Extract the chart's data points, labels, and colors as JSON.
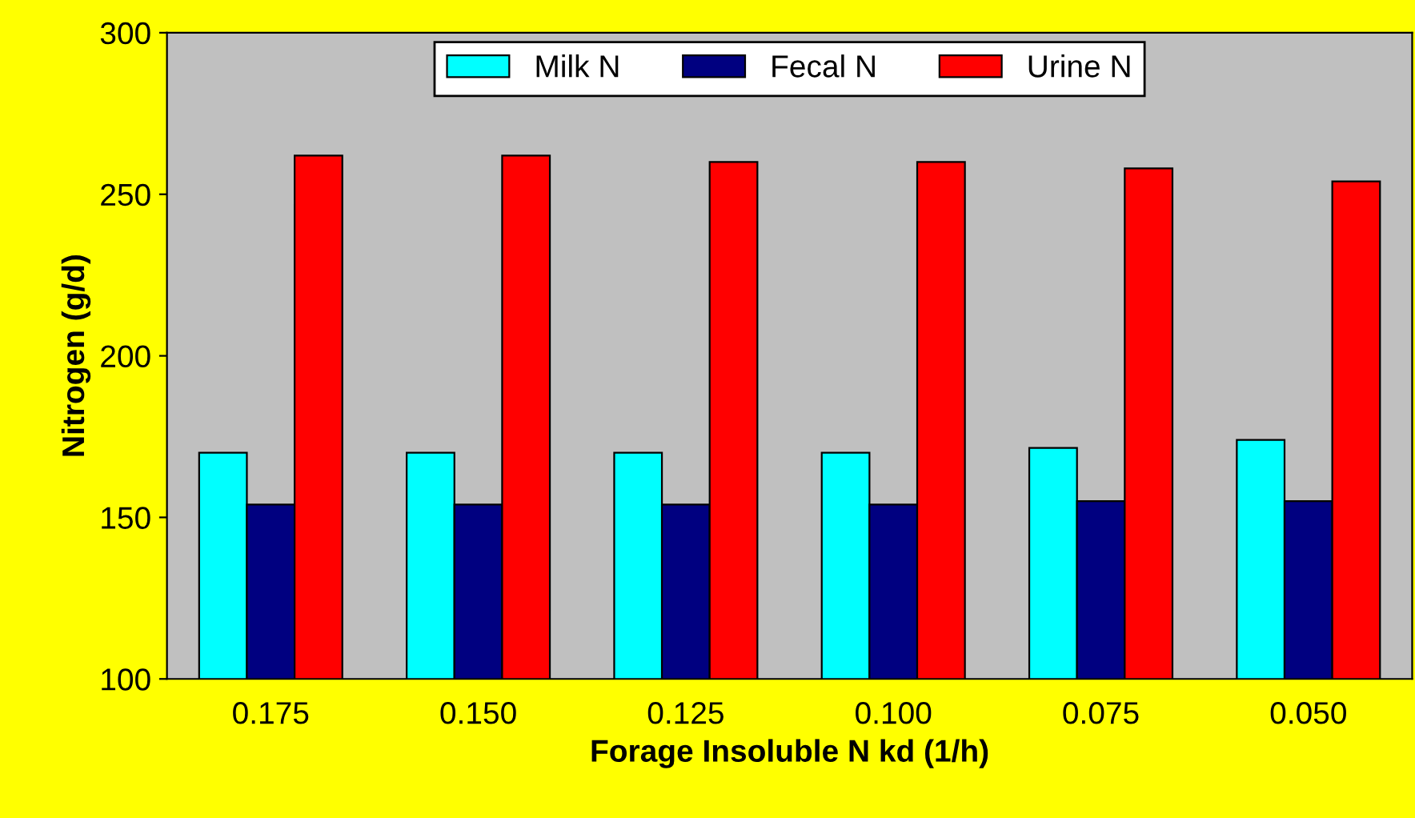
{
  "chart_data": {
    "type": "bar",
    "xlabel": "Forage Insoluble N kd (1/h)",
    "ylabel": "Nitrogen (g/d)",
    "categories": [
      "0.175",
      "0.150",
      "0.125",
      "0.100",
      "0.075",
      "0.050"
    ],
    "series": [
      {
        "name": "Milk N",
        "color": "#00ffff",
        "values": [
          170,
          170,
          170,
          170,
          171.5,
          174
        ]
      },
      {
        "name": "Fecal N",
        "color": "#000080",
        "values": [
          154,
          154,
          154,
          154,
          155,
          155
        ]
      },
      {
        "name": "Urine N",
        "color": "#ff0000",
        "values": [
          262,
          262,
          260,
          260,
          258,
          254
        ]
      }
    ],
    "ylim": [
      100,
      300
    ],
    "yticks": [
      100,
      150,
      200,
      250,
      300
    ],
    "grid": false,
    "legend": "top"
  }
}
